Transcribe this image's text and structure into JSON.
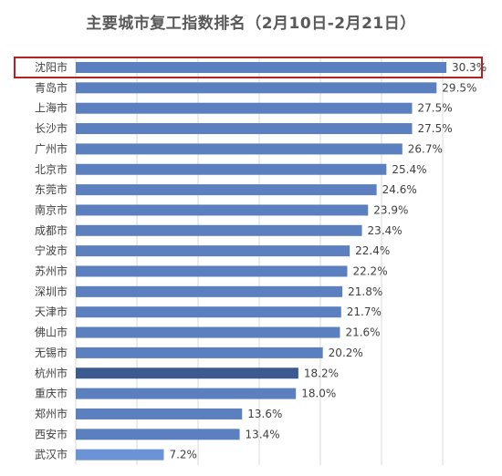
{
  "chart_data": {
    "type": "bar",
    "orientation": "horizontal",
    "title": "主要城市复工指数排名（2月10日-2月21日）",
    "categories": [
      "沈阳市",
      "青岛市",
      "上海市",
      "长沙市",
      "广州市",
      "北京市",
      "东莞市",
      "南京市",
      "成都市",
      "宁波市",
      "苏州市",
      "深圳市",
      "天津市",
      "佛山市",
      "无锡市",
      "杭州市",
      "重庆市",
      "郑州市",
      "西安市",
      "武汉市"
    ],
    "values": [
      30.3,
      29.5,
      27.5,
      27.5,
      26.7,
      25.4,
      24.6,
      23.9,
      23.4,
      22.4,
      22.2,
      21.8,
      21.7,
      21.6,
      20.2,
      18.2,
      18.0,
      13.6,
      13.4,
      7.2
    ],
    "value_labels": [
      "30.3%",
      "29.5%",
      "27.5%",
      "27.5%",
      "26.7%",
      "25.4%",
      "24.6%",
      "23.9%",
      "23.4%",
      "22.4%",
      "22.2%",
      "21.8%",
      "21.7%",
      "21.6%",
      "20.2%",
      "18.2%",
      "18.0%",
      "13.6%",
      "13.4%",
      "7.2%"
    ],
    "xlim": [
      0,
      35
    ],
    "grid": true,
    "highlighted_category": "沈阳市",
    "colors": {
      "bar": "#5b7fbf",
      "bar_dark": "#3c5a8f",
      "bar_light": "#6b93d6",
      "highlight_box": "#b22222",
      "grid": "#d9d9d9"
    },
    "bar_color_overrides": {
      "杭州市": "bar_dark",
      "武汉市": "bar_light"
    }
  }
}
